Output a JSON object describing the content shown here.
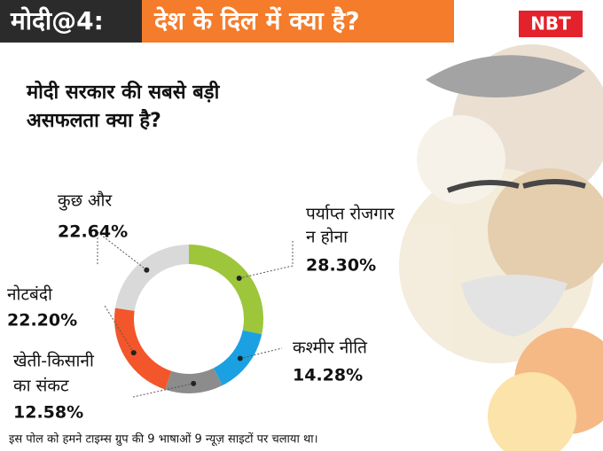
{
  "header": {
    "tag": "मोदी@4:",
    "headline": "देश के दिल में क्या है?",
    "logo": "NBT"
  },
  "chart_data": {
    "type": "donut",
    "title": [
      "मोदी सरकार की सबसे बड़ी",
      "असफलता क्या है?"
    ],
    "categories": [
      [
        "पर्याप्त रोजगार",
        "न होना"
      ],
      [
        "कश्मीर नीति"
      ],
      [
        "खेती-किसानी",
        "का संकट"
      ],
      [
        "नोटबंदी"
      ],
      [
        "कुछ और"
      ]
    ],
    "values": [
      28.3,
      14.28,
      12.58,
      22.2,
      22.64
    ],
    "value_labels": [
      "28.30%",
      "14.28%",
      "12.58%",
      "22.20%",
      "22.64%"
    ],
    "colors": [
      "#9dc63b",
      "#1ba1e2",
      "#8c8c8c",
      "#f2562a",
      "#d9d9d9"
    ]
  },
  "footer": "इस पोल को हमने टाइम्स ग्रुप की 9 भाषाओं 9 न्यूज़ साइटों पर चलाया था।"
}
